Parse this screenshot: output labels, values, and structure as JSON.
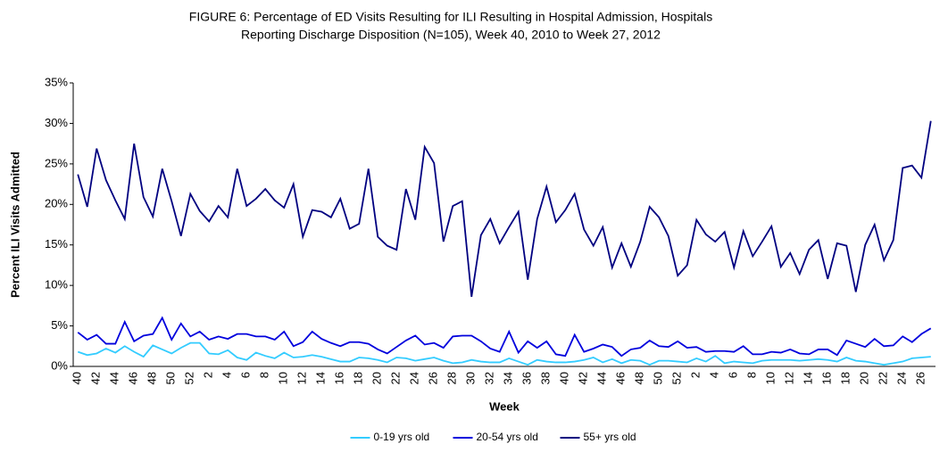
{
  "chart_data": {
    "type": "line",
    "title": [
      "FIGURE 6: Percentage of ED Visits Resulting for ILI Resulting in Hospital Admission, Hospitals",
      "Reporting Discharge Disposition (N=105), Week 40, 2010 to Week 27, 2012"
    ],
    "x_label": "Week",
    "y_label": "Percent ILI Visits Admitted",
    "categories": [
      "40",
      null,
      "42",
      null,
      "44",
      null,
      "46",
      null,
      "48",
      null,
      "50",
      null,
      "52",
      null,
      "2",
      null,
      "4",
      null,
      "6",
      null,
      "8",
      null,
      "10",
      null,
      "12",
      null,
      "14",
      null,
      "16",
      null,
      "18",
      null,
      "20",
      null,
      "22",
      null,
      "24",
      null,
      "26",
      null,
      "28",
      null,
      "30",
      null,
      "32",
      null,
      "34",
      null,
      "36",
      null,
      "38",
      null,
      "40",
      null,
      "42",
      null,
      "44",
      null,
      "46",
      null,
      "48",
      null,
      "50",
      null,
      "52",
      null,
      "2",
      null,
      "4",
      null,
      "6",
      null,
      "8",
      null,
      "10",
      null,
      "12",
      null,
      "14",
      null,
      "16",
      null,
      "18",
      null,
      "20",
      null,
      "22",
      null,
      "24",
      null,
      "26",
      null
    ],
    "series": [
      {
        "name": "0-19 yrs old",
        "color": "#33ccff",
        "values": [
          1.8,
          1.4,
          1.6,
          2.2,
          1.7,
          2.5,
          1.8,
          1.2,
          2.6,
          2.1,
          1.6,
          2.3,
          2.9,
          2.9,
          1.6,
          1.5,
          2.0,
          1.1,
          0.8,
          1.7,
          1.3,
          1.0,
          1.7,
          1.1,
          1.2,
          1.4,
          1.2,
          0.9,
          0.6,
          0.6,
          1.1,
          1.0,
          0.8,
          0.5,
          1.1,
          1.0,
          0.7,
          0.9,
          1.1,
          0.7,
          0.4,
          0.5,
          0.8,
          0.6,
          0.5,
          0.5,
          1.0,
          0.6,
          0.2,
          0.8,
          0.6,
          0.5,
          0.5,
          0.6,
          0.8,
          1.1,
          0.5,
          0.9,
          0.4,
          0.8,
          0.7,
          0.2,
          0.7,
          0.7,
          0.6,
          0.5,
          1.0,
          0.6,
          1.3,
          0.4,
          0.6,
          0.5,
          0.4,
          0.7,
          0.8,
          0.8,
          0.8,
          0.7,
          0.8,
          0.9,
          0.8,
          0.6,
          1.1,
          0.7,
          0.6,
          0.4,
          0.2,
          0.4,
          0.6,
          1.0,
          1.1,
          1.2
        ]
      },
      {
        "name": "20-54 yrs old",
        "color": "#0000dd",
        "values": [
          4.2,
          3.3,
          3.9,
          2.8,
          2.8,
          5.5,
          3.1,
          3.8,
          4.0,
          6.0,
          3.3,
          5.3,
          3.7,
          4.3,
          3.3,
          3.7,
          3.4,
          4.0,
          4.0,
          3.7,
          3.7,
          3.3,
          4.3,
          2.5,
          3.0,
          4.3,
          3.4,
          2.9,
          2.5,
          3.0,
          3.0,
          2.8,
          2.1,
          1.6,
          2.4,
          3.2,
          3.8,
          2.7,
          2.9,
          2.3,
          3.7,
          3.8,
          3.8,
          3.1,
          2.2,
          1.8,
          4.3,
          1.7,
          3.1,
          2.3,
          3.1,
          1.5,
          1.3,
          3.9,
          1.8,
          2.2,
          2.7,
          2.4,
          1.3,
          2.1,
          2.3,
          3.2,
          2.5,
          2.4,
          3.1,
          2.3,
          2.4,
          1.8,
          1.9,
          1.9,
          1.8,
          2.5,
          1.5,
          1.5,
          1.8,
          1.7,
          2.1,
          1.6,
          1.5,
          2.1,
          2.1,
          1.4,
          3.2,
          2.8,
          2.4,
          3.4,
          2.5,
          2.6,
          3.7,
          3.0,
          4.0,
          4.7
        ]
      },
      {
        "name": "55+ yrs old",
        "color": "#000080",
        "values": [
          23.7,
          19.7,
          26.9,
          23.0,
          20.5,
          18.2,
          27.5,
          20.9,
          18.5,
          24.4,
          20.4,
          16.1,
          21.3,
          19.2,
          17.9,
          19.8,
          18.4,
          24.4,
          19.8,
          20.7,
          21.9,
          20.5,
          19.6,
          22.5,
          16.0,
          19.3,
          19.1,
          18.4,
          20.7,
          17.0,
          17.6,
          24.4,
          16.0,
          14.9,
          14.4,
          21.9,
          18.1,
          27.1,
          25.1,
          15.4,
          19.8,
          20.4,
          8.6,
          16.2,
          18.2,
          15.2,
          17.2,
          19.1,
          10.7,
          18.2,
          22.2,
          17.8,
          19.3,
          21.3,
          16.9,
          14.9,
          17.2,
          12.2,
          15.2,
          12.3,
          15.4,
          19.7,
          18.4,
          16.1,
          11.2,
          12.5,
          18.1,
          16.3,
          15.4,
          16.6,
          12.2,
          16.7,
          13.6,
          15.4,
          17.3,
          12.3,
          14.0,
          11.4,
          14.4,
          15.6,
          10.8,
          15.2,
          14.9,
          9.2,
          15.0,
          17.5,
          13.1,
          15.6,
          24.5,
          24.8,
          23.3,
          30.3
        ]
      }
    ],
    "ylim": [
      0,
      35
    ],
    "yticks": [
      {
        "value": 0,
        "label": "0%"
      },
      {
        "value": 5,
        "label": "5%"
      },
      {
        "value": 10,
        "label": "10%"
      },
      {
        "value": 15,
        "label": "15%"
      },
      {
        "value": 20,
        "label": "20%"
      },
      {
        "value": 25,
        "label": "25%"
      },
      {
        "value": 30,
        "label": "30%"
      },
      {
        "value": 35,
        "label": "35%"
      }
    ],
    "grid": false,
    "legend": "bottom"
  }
}
